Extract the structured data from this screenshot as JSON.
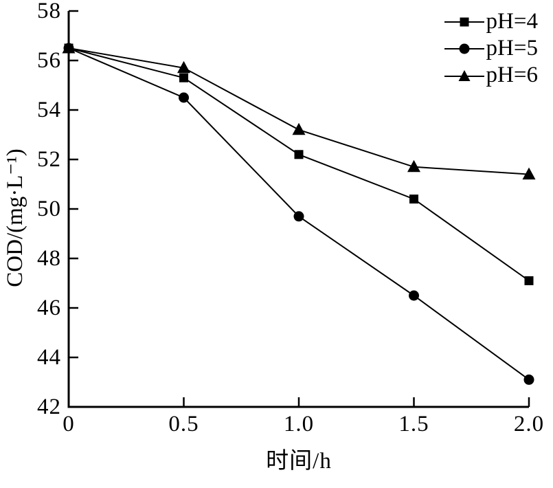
{
  "chart_data": {
    "type": "line",
    "title": "",
    "xlabel": "时间/h",
    "ylabel": "COD/(mg·L⁻¹)",
    "xlim": [
      0,
      2.0
    ],
    "ylim": [
      42,
      58
    ],
    "x": [
      0,
      0.5,
      1.0,
      1.5,
      2.0
    ],
    "x_tick_labels": [
      "0",
      "0.5",
      "1.0",
      "1.5",
      "2.0"
    ],
    "y_ticks": [
      42,
      44,
      46,
      48,
      50,
      52,
      54,
      56,
      58
    ],
    "grid": false,
    "legend_position": "top-right",
    "line_color": "#000000",
    "background_color": "#ffffff",
    "series": [
      {
        "name": "pH=4",
        "marker": "square",
        "values": [
          56.5,
          55.3,
          52.2,
          50.4,
          47.1
        ]
      },
      {
        "name": "pH=5",
        "marker": "circle",
        "values": [
          56.5,
          54.5,
          49.7,
          46.5,
          43.1
        ]
      },
      {
        "name": "pH=6",
        "marker": "triangle",
        "values": [
          56.5,
          55.7,
          53.2,
          51.7,
          51.4
        ]
      }
    ]
  }
}
